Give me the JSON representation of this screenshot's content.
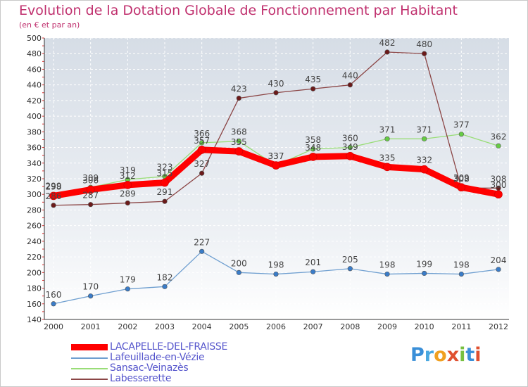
{
  "chart_data": {
    "type": "line",
    "title": "Evolution de la Dotation Globale de Fonctionnement par Habitant",
    "subtitle": "(en € et par an)",
    "xlabel": "",
    "ylabel": "",
    "x": [
      "2000",
      "2001",
      "2002",
      "2003",
      "2004",
      "2005",
      "2006",
      "2007",
      "2008",
      "2009",
      "2010",
      "2011",
      "2012"
    ],
    "ylim": [
      140,
      500
    ],
    "ytick_step": 20,
    "yticks": [
      "140",
      "160",
      "180",
      "200",
      "220",
      "240",
      "260",
      "280",
      "300",
      "320",
      "340",
      "360",
      "380",
      "400",
      "420",
      "440",
      "460",
      "480",
      "500"
    ],
    "grid": true,
    "legend_position": "bottom-left",
    "series": [
      {
        "name": "LACAPELLE-DEL-FRAISSE",
        "color": "#ff0000",
        "marker": "#ff0000",
        "values": [
          298,
          306,
          312,
          315,
          357,
          355,
          337,
          348,
          349,
          335,
          332,
          309,
          300
        ],
        "labels": [
          "298",
          "306",
          "312",
          "315",
          "357",
          "355",
          "337",
          "348",
          "349",
          "335",
          "332",
          "309",
          "300"
        ]
      },
      {
        "name": "Lafeuillade-en-Vézie",
        "color": "#6f9fd0",
        "marker": "#3a7cc8",
        "values": [
          160,
          170,
          179,
          182,
          227,
          200,
          198,
          201,
          205,
          198,
          199,
          198,
          204
        ],
        "labels": [
          "160",
          "170",
          "179",
          "182",
          "227",
          "200",
          "198",
          "201",
          "205",
          "198",
          "199",
          "198",
          "204"
        ]
      },
      {
        "name": "Sansac-Veinazès",
        "color": "#99dd77",
        "marker": "#66cc44",
        "values": [
          299,
          309,
          319,
          323,
          366,
          368,
          337,
          358,
          360,
          371,
          371,
          377,
          362
        ],
        "labels": [
          "299",
          "309",
          "319",
          "323",
          "366",
          "368",
          "337",
          "358",
          "360",
          "371",
          "371",
          "377",
          "362"
        ]
      },
      {
        "name": "Labesserette",
        "color": "#8b4545",
        "marker": "#6b1a1a",
        "values": [
          286,
          287,
          289,
          291,
          327,
          423,
          430,
          435,
          440,
          482,
          480,
          308,
          308
        ],
        "labels": [
          "286",
          "287",
          "289",
          "291",
          "327",
          "423",
          "430",
          "435",
          "440",
          "482",
          "480",
          "308",
          "308"
        ]
      }
    ]
  },
  "logo": {
    "text": "Proxiti",
    "letters": [
      "P",
      "r",
      "o",
      "x",
      "i",
      "t",
      "i"
    ],
    "colors": [
      "#3a8fd8",
      "#4aa8e0",
      "#f0a020",
      "#e05030",
      "#78c040",
      "#3a8fd8",
      "#e05030"
    ]
  }
}
